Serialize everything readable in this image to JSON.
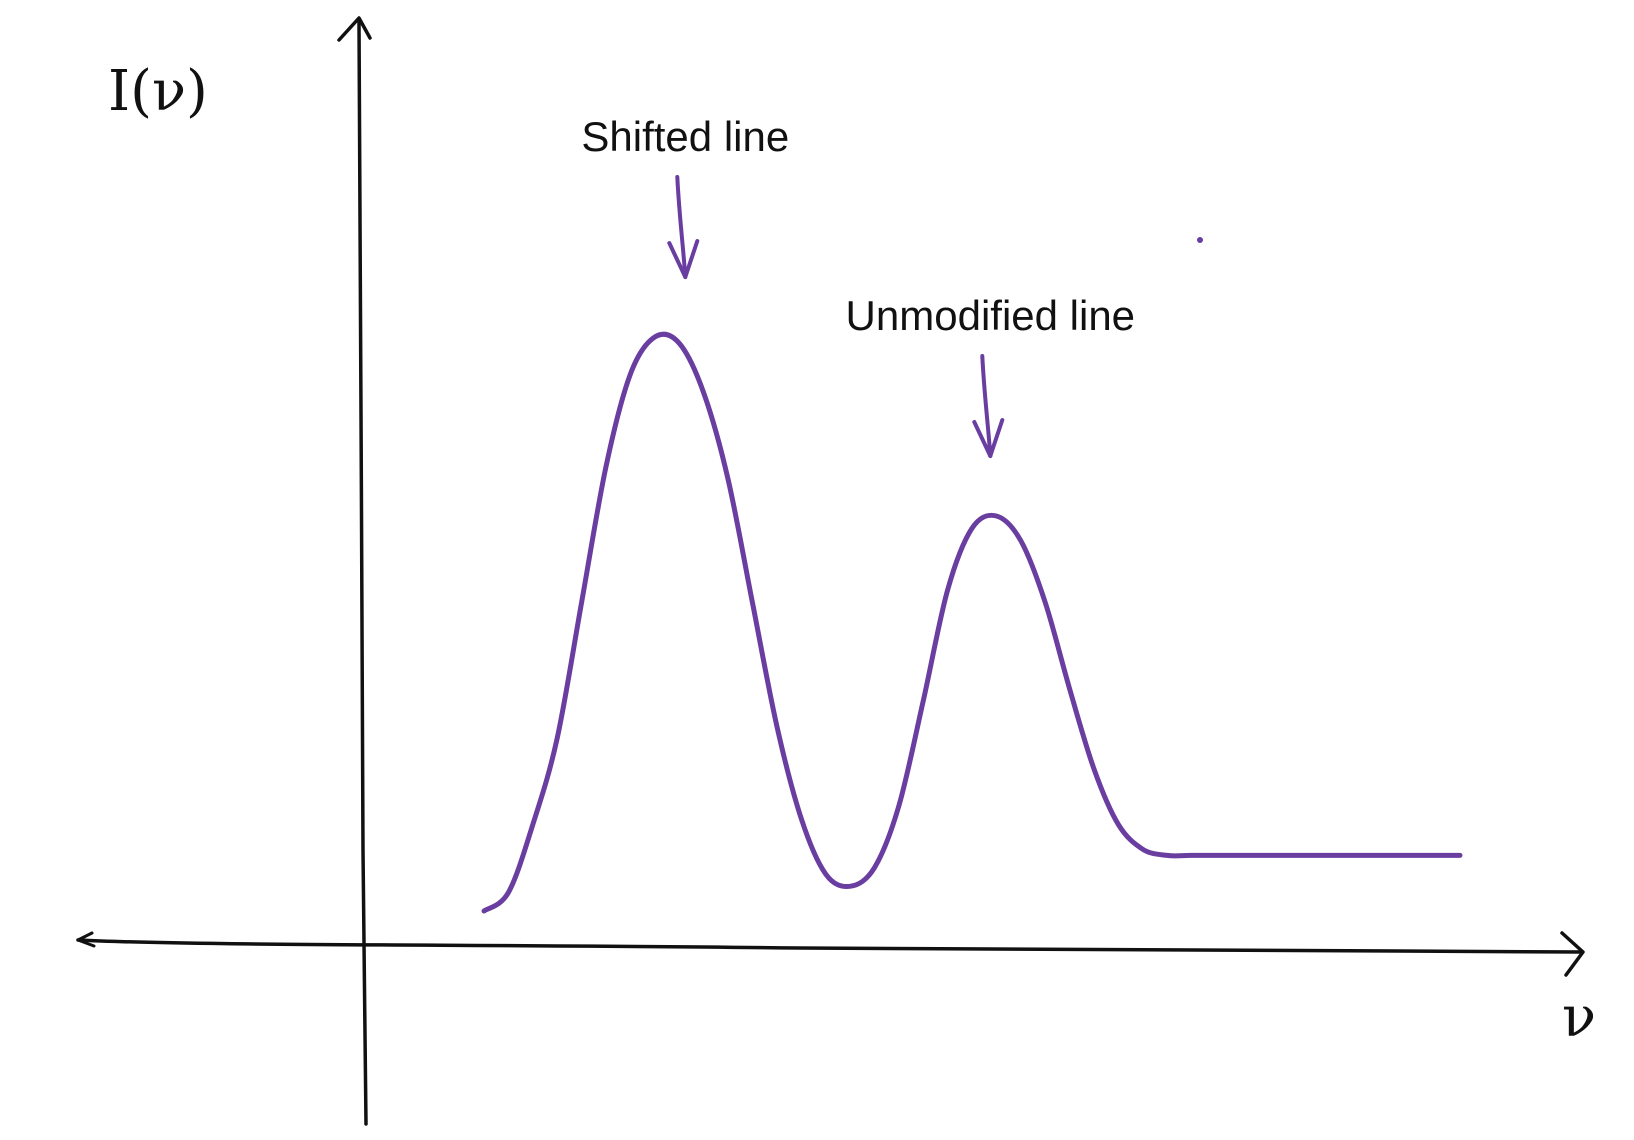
{
  "colors": {
    "curve": "#6a3ea1",
    "axes": "#111111",
    "background": "#ffffff"
  },
  "chart_data": {
    "type": "line",
    "ylabel": "I(ν)",
    "xlabel": "ν",
    "grid": false,
    "x": [
      0.1,
      0.12,
      0.14,
      0.16,
      0.18,
      0.2,
      0.22,
      0.24,
      0.26,
      0.28,
      0.3,
      0.32,
      0.34,
      0.36,
      0.38,
      0.4,
      0.42,
      0.44,
      0.46,
      0.48,
      0.5,
      0.52,
      0.54,
      0.56,
      0.58,
      0.6,
      0.62,
      0.64,
      0.66,
      0.68,
      0.7,
      0.72,
      0.74,
      0.76,
      0.78,
      0.8,
      0.82,
      0.84,
      0.86,
      0.88,
      0.9
    ],
    "series": [
      {
        "values": [
          0.06,
          0.09,
          0.2,
          0.34,
          0.56,
          0.78,
          0.93,
          0.99,
          0.98,
          0.9,
          0.76,
          0.56,
          0.36,
          0.21,
          0.12,
          0.1,
          0.13,
          0.23,
          0.4,
          0.58,
          0.68,
          0.7,
          0.66,
          0.56,
          0.42,
          0.29,
          0.2,
          0.16,
          0.15,
          0.15,
          0.15,
          0.15,
          0.15,
          0.15,
          0.15,
          0.15,
          0.15,
          0.15,
          0.15,
          0.15,
          0.15
        ]
      }
    ],
    "annotations": [
      {
        "text": "Shifted line",
        "x": 0.265,
        "y": 0.99
      },
      {
        "text": "Unmodified line",
        "x": 0.515,
        "y": 0.7
      }
    ]
  }
}
